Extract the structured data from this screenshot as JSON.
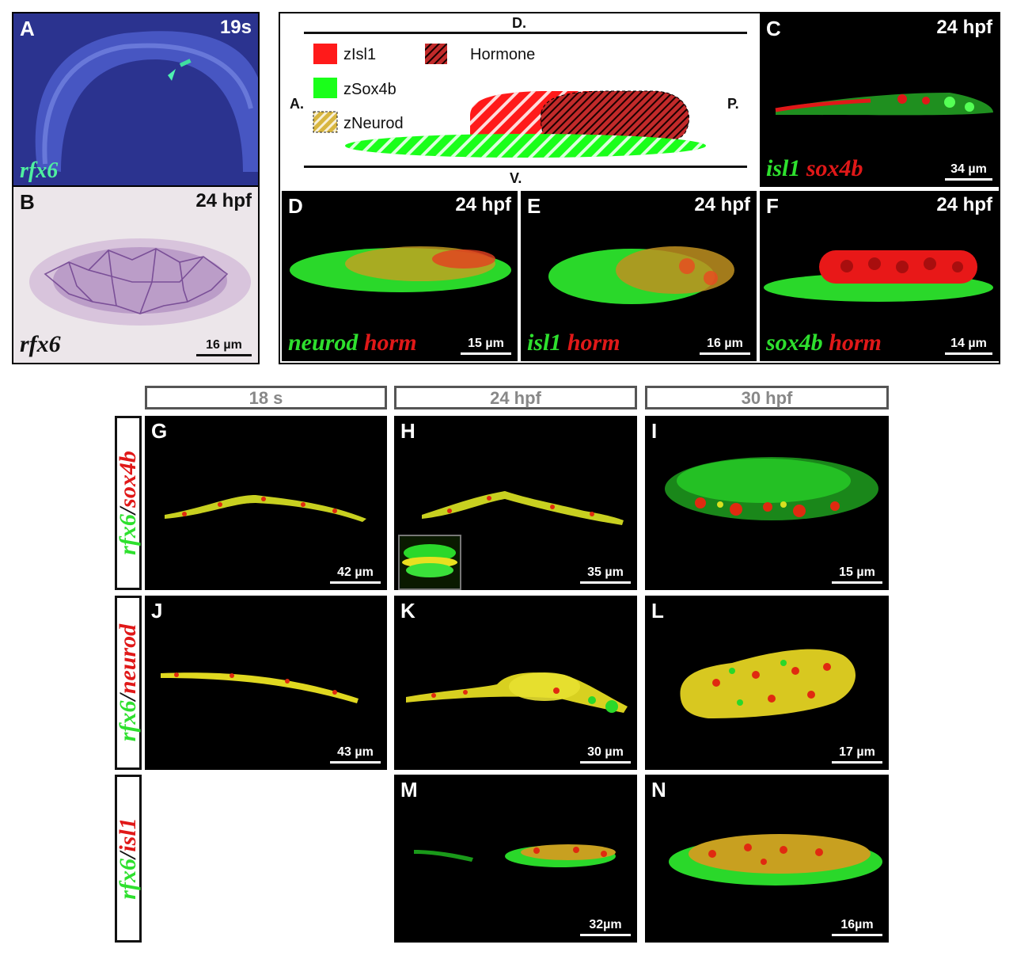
{
  "panels": {
    "A": {
      "letter": "A",
      "stage": "19s",
      "gene": "rfx6"
    },
    "B": {
      "letter": "B",
      "stage": "24 hpf",
      "gene": "rfx6",
      "scale": "16 µm"
    },
    "C": {
      "letter": "C",
      "stage": "24 hpf",
      "gene1": "isl1",
      "gene2": "sox4b",
      "scale": "34 µm"
    },
    "D": {
      "letter": "D",
      "stage": "24 hpf",
      "gene1": "neurod",
      "gene2": "horm",
      "scale": "15 µm"
    },
    "E": {
      "letter": "E",
      "stage": "24 hpf",
      "gene1": "isl1",
      "gene2": "horm",
      "scale": "16 µm"
    },
    "F": {
      "letter": "F",
      "stage": "24 hpf",
      "gene1": "sox4b",
      "gene2": "horm",
      "scale": "14 µm"
    },
    "G": {
      "letter": "G",
      "scale": "42 µm"
    },
    "H": {
      "letter": "H",
      "scale": "35 µm"
    },
    "I": {
      "letter": "I",
      "scale": "15 µm"
    },
    "J": {
      "letter": "J",
      "scale": "43 µm"
    },
    "K": {
      "letter": "K",
      "scale": "30 µm"
    },
    "L": {
      "letter": "L",
      "scale": "17 µm"
    },
    "M": {
      "letter": "M",
      "scale": "32µm"
    },
    "N": {
      "letter": "N",
      "scale": "16µm"
    }
  },
  "diagram": {
    "dorsal": "D.",
    "ventral": "V.",
    "anterior": "A.",
    "posterior": "P.",
    "legend": {
      "isl1": "zIsl1",
      "sox4b": "zSox4b",
      "neurod": "zNeurod",
      "hormone": "Hormone"
    },
    "colors": {
      "isl1": "#ff1a1a",
      "sox4b": "#1aff1a",
      "hormone": "#b01c1c"
    }
  },
  "columns": [
    "18 s",
    "24 hpf",
    "30 hpf"
  ],
  "rows": [
    {
      "g": "rfx6",
      "sep": "/",
      "r": "sox4b"
    },
    {
      "g": "rfx6",
      "sep": "/",
      "r": "neurod"
    },
    {
      "g": "rfx6",
      "sep": "/",
      "r": "isl1"
    }
  ]
}
